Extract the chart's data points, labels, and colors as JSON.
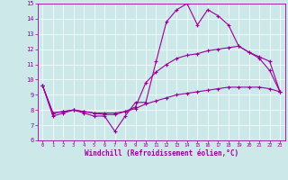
{
  "bg_color": "#cce8e8",
  "line_color": "#990099",
  "xlabel": "Windchill (Refroidissement éolien,°C)",
  "xlim": [
    -0.5,
    23.5
  ],
  "ylim": [
    6,
    15
  ],
  "xticks": [
    0,
    1,
    2,
    3,
    4,
    5,
    6,
    7,
    8,
    9,
    10,
    11,
    12,
    13,
    14,
    15,
    16,
    17,
    18,
    19,
    20,
    21,
    22,
    23
  ],
  "yticks": [
    6,
    7,
    8,
    9,
    10,
    11,
    12,
    13,
    14,
    15
  ],
  "series1_x": [
    0,
    1,
    2,
    3,
    4,
    5,
    6,
    7,
    8,
    9,
    10,
    11,
    12,
    13,
    14,
    15,
    16,
    17,
    18,
    19,
    20,
    21,
    22,
    23
  ],
  "series1_y": [
    9.6,
    7.6,
    7.8,
    8.0,
    7.8,
    7.6,
    7.6,
    6.6,
    7.6,
    8.5,
    8.5,
    11.2,
    13.8,
    14.6,
    15.0,
    13.6,
    14.6,
    14.2,
    13.6,
    12.2,
    11.8,
    11.4,
    10.6,
    9.2
  ],
  "series2_x": [
    0,
    1,
    2,
    3,
    4,
    5,
    6,
    7,
    8,
    9,
    10,
    11,
    12,
    13,
    14,
    15,
    16,
    17,
    18,
    19,
    20,
    21,
    22,
    23
  ],
  "series2_y": [
    9.6,
    7.8,
    7.9,
    8.0,
    7.9,
    7.8,
    7.7,
    7.7,
    7.9,
    8.2,
    9.8,
    10.5,
    11.0,
    11.4,
    11.6,
    11.7,
    11.9,
    12.0,
    12.1,
    12.2,
    11.8,
    11.5,
    11.2,
    9.2
  ],
  "series3_x": [
    0,
    1,
    2,
    3,
    4,
    5,
    6,
    7,
    8,
    9,
    10,
    11,
    12,
    13,
    14,
    15,
    16,
    17,
    18,
    19,
    20,
    21,
    22,
    23
  ],
  "series3_y": [
    9.6,
    7.8,
    7.9,
    8.0,
    7.9,
    7.8,
    7.8,
    7.8,
    7.9,
    8.1,
    8.4,
    8.6,
    8.8,
    9.0,
    9.1,
    9.2,
    9.3,
    9.4,
    9.5,
    9.5,
    9.5,
    9.5,
    9.4,
    9.2
  ],
  "xtick_fontsize": 4.0,
  "ytick_fontsize": 5.0,
  "xlabel_fontsize": 5.5
}
